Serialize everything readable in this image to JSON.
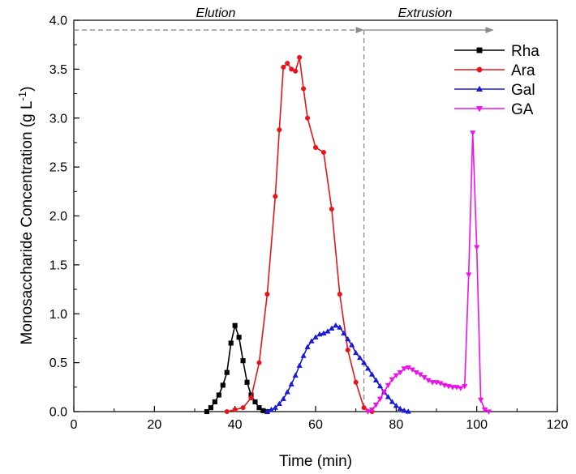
{
  "chart_data": {
    "type": "line",
    "title": "",
    "xlabel": "Time (min)",
    "ylabel": "Monosaccharide Concentration (g L",
    "ylabel_superscript": "-1",
    "ylabel_suffix": ")",
    "xlim": [
      0,
      120
    ],
    "ylim": [
      0,
      4.0
    ],
    "xticks": [
      0,
      20,
      40,
      60,
      80,
      100,
      120
    ],
    "yticks": [
      0.0,
      0.5,
      1.0,
      1.5,
      2.0,
      2.5,
      3.0,
      3.5,
      4.0
    ],
    "ytick_labels": [
      "0.0",
      "0.5",
      "1.0",
      "1.5",
      "2.0",
      "2.5",
      "3.0",
      "3.5",
      "4.0"
    ],
    "grid": false,
    "legend_position": "top-right",
    "annotations": {
      "elution_label": "Elution",
      "extrusion_label": "Extrusion",
      "divider_x": 72,
      "arrow_y": 3.9,
      "extrusion_arrow_end_x": 104
    },
    "series": [
      {
        "name": "Rha",
        "color": "#000000",
        "marker": "square",
        "x": [
          33,
          34,
          35,
          36,
          37,
          38,
          39,
          40,
          41,
          42,
          43,
          44,
          45,
          46,
          47,
          48
        ],
        "y": [
          0.0,
          0.04,
          0.1,
          0.17,
          0.27,
          0.4,
          0.7,
          0.88,
          0.76,
          0.52,
          0.3,
          0.17,
          0.1,
          0.04,
          0.01,
          0.0
        ]
      },
      {
        "name": "Ara",
        "color": "#e8141b",
        "marker": "circle",
        "x": [
          38,
          40,
          42,
          44,
          46,
          48,
          50,
          51,
          52,
          53,
          54,
          55,
          56,
          57,
          58,
          60,
          62,
          64,
          66,
          68,
          70,
          72,
          74
        ],
        "y": [
          0.0,
          0.02,
          0.04,
          0.14,
          0.5,
          1.2,
          2.2,
          2.88,
          3.52,
          3.56,
          3.5,
          3.48,
          3.62,
          3.3,
          3.0,
          2.7,
          2.65,
          2.07,
          1.2,
          0.63,
          0.3,
          0.04,
          0.0
        ]
      },
      {
        "name": "Gal",
        "color": "#1a1ad8",
        "marker": "triangle-up",
        "x": [
          48,
          49,
          50,
          51,
          52,
          53,
          54,
          55,
          56,
          57,
          58,
          59,
          60,
          61,
          62,
          63,
          64,
          65,
          66,
          67,
          68,
          69,
          70,
          71,
          72,
          73,
          74,
          75,
          76,
          77,
          78,
          79,
          80,
          81,
          82,
          83
        ],
        "y": [
          0.0,
          0.02,
          0.04,
          0.08,
          0.13,
          0.2,
          0.28,
          0.37,
          0.47,
          0.57,
          0.66,
          0.72,
          0.76,
          0.79,
          0.8,
          0.82,
          0.85,
          0.88,
          0.86,
          0.8,
          0.74,
          0.68,
          0.6,
          0.55,
          0.5,
          0.44,
          0.38,
          0.32,
          0.26,
          0.2,
          0.15,
          0.1,
          0.06,
          0.03,
          0.01,
          0.0
        ]
      },
      {
        "name": "GA",
        "color": "#ee10ee",
        "marker": "triangle-down",
        "x": [
          73,
          74,
          75,
          76,
          77,
          78,
          79,
          80,
          81,
          82,
          83,
          84,
          85,
          86,
          87,
          88,
          89,
          90,
          91,
          92,
          93,
          94,
          95,
          96,
          97,
          98,
          99,
          100,
          101,
          102,
          103
        ],
        "y": [
          0.0,
          0.02,
          0.07,
          0.13,
          0.2,
          0.27,
          0.33,
          0.37,
          0.4,
          0.44,
          0.45,
          0.43,
          0.4,
          0.38,
          0.35,
          0.32,
          0.3,
          0.3,
          0.29,
          0.27,
          0.26,
          0.25,
          0.25,
          0.24,
          0.26,
          1.4,
          2.85,
          1.68,
          0.12,
          0.02,
          0.0
        ]
      }
    ]
  }
}
